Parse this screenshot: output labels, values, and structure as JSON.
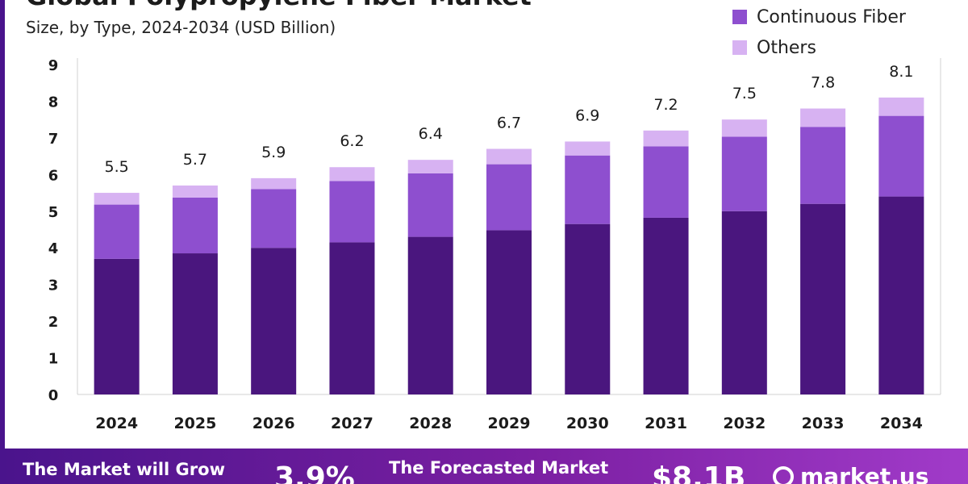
{
  "header": {
    "title": "Global Polypropylene Fiber Market",
    "subtitle": "Size, by Type, 2024-2034 (USD Billion)"
  },
  "legend": {
    "items": [
      {
        "label": "Continuous Fiber",
        "color": "#8e4fcf"
      },
      {
        "label": "Others",
        "color": "#d7b2f2"
      }
    ]
  },
  "chart_data": {
    "type": "bar",
    "stacked": true,
    "categories": [
      "2024",
      "2025",
      "2026",
      "2027",
      "2028",
      "2029",
      "2030",
      "2031",
      "2032",
      "2033",
      "2034"
    ],
    "series": [
      {
        "name": "",
        "color": "#4a167e",
        "values": [
          3.7,
          3.85,
          4.0,
          4.15,
          4.3,
          4.48,
          4.65,
          4.82,
          5.0,
          5.2,
          5.4
        ]
      },
      {
        "name": "Continuous Fiber",
        "color": "#8e4fcf",
        "values": [
          1.48,
          1.52,
          1.6,
          1.67,
          1.73,
          1.8,
          1.87,
          1.95,
          2.03,
          2.1,
          2.2
        ]
      },
      {
        "name": "Others",
        "color": "#d7b2f2",
        "values": [
          0.32,
          0.33,
          0.3,
          0.38,
          0.37,
          0.42,
          0.38,
          0.43,
          0.47,
          0.5,
          0.5
        ]
      }
    ],
    "totals": [
      "5.5",
      "5.7",
      "5.9",
      "6.2",
      "6.4",
      "6.7",
      "6.9",
      "7.2",
      "7.5",
      "7.8",
      "8.1"
    ],
    "yticks": [
      "0",
      "1",
      "2",
      "3",
      "4",
      "5",
      "6",
      "7",
      "8",
      "9"
    ],
    "ylim": [
      0,
      9
    ],
    "grid": false
  },
  "banner": {
    "grow_label": "The Market will Grow",
    "cagr_value": "3.9%",
    "forecast_label": "The Forecasted Market",
    "forecast_value": "$8.1B",
    "brand": "market.us"
  }
}
